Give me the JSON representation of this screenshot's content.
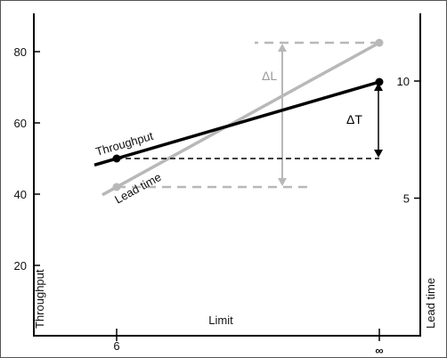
{
  "chart_data": {
    "type": "line",
    "xlabel": "Limit",
    "ylabel_left": "Throughput",
    "ylabel_right": "Lead time",
    "x_ticks": [
      "6",
      "∞"
    ],
    "y_left": {
      "ticks": [
        20,
        40,
        60,
        80
      ],
      "range": [
        0,
        90
      ]
    },
    "y_right": {
      "ticks": [
        5,
        10
      ]
    },
    "grid": false,
    "series": [
      {
        "name": "Throughput",
        "axis": "left",
        "color": "#000000",
        "x": [
          "6",
          "∞"
        ],
        "y": [
          50,
          71.5
        ]
      },
      {
        "name": "Lead time",
        "axis": "left",
        "color": "#b8b8b8",
        "x": [
          "6",
          "∞"
        ],
        "y": [
          42,
          82.5
        ]
      }
    ],
    "annotations": [
      {
        "label": "ΔT",
        "color": "#000000"
      },
      {
        "label": "ΔL",
        "color": "#9a9a9a"
      }
    ]
  }
}
